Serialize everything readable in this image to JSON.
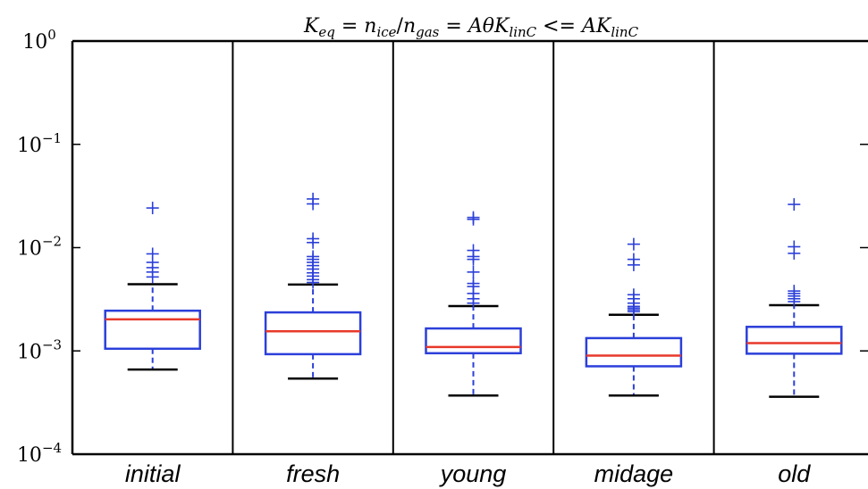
{
  "chart_data": {
    "type": "box",
    "title": "K_eq = n_ice/n_gas = AθK_linC <= AK_linC",
    "title_parts": {
      "k": "K",
      "k_sub": "eq",
      "eq1": " = ",
      "n1": "n",
      "n1_sub": "ice",
      "slash": "/",
      "n2": "n",
      "n2_sub": "gas",
      "eq2": " = ",
      "mid": "AθK",
      "mid_sub": "linC",
      "le": " <= ",
      "last": "AK",
      "last_sub": "linC"
    },
    "y_scale": "log",
    "ylim": [
      0.0001,
      1
    ],
    "y_ticks": [
      {
        "value": 1,
        "base": "10",
        "exp": "0"
      },
      {
        "value": 0.1,
        "base": "10",
        "exp": "−1"
      },
      {
        "value": 0.01,
        "base": "10",
        "exp": "−2"
      },
      {
        "value": 0.001,
        "base": "10",
        "exp": "−3"
      },
      {
        "value": 0.0001,
        "base": "10",
        "exp": "−4"
      }
    ],
    "categories": [
      "initial",
      "fresh",
      "young",
      "midage",
      "old"
    ],
    "colors": {
      "box": "#2b3fd9",
      "median": "#e8392b",
      "whisker_cap": "#000000",
      "outlier": "#2b3fd9",
      "separator": "#000000"
    },
    "boxes": [
      {
        "category": "initial",
        "whisker_low": 0.00066,
        "q1": 0.00105,
        "median": 0.00202,
        "q3": 0.00245,
        "whisker_high": 0.00442,
        "outliers": [
          0.0052,
          0.0058,
          0.0064,
          0.0072,
          0.0087,
          0.0242
        ]
      },
      {
        "category": "fresh",
        "whisker_low": 0.00054,
        "q1": 0.00093,
        "median": 0.00155,
        "q3": 0.00236,
        "whisker_high": 0.00439,
        "outliers": [
          0.0046,
          0.0049,
          0.0053,
          0.0057,
          0.0062,
          0.0067,
          0.0072,
          0.0077,
          0.0082,
          0.0112,
          0.0122,
          0.0265,
          0.0296
        ]
      },
      {
        "category": "young",
        "whisker_low": 0.00037,
        "q1": 0.00095,
        "median": 0.00109,
        "q3": 0.00165,
        "whisker_high": 0.00272,
        "outliers": [
          0.0029,
          0.0032,
          0.0036,
          0.0042,
          0.0045,
          0.0058,
          0.0077,
          0.0082,
          0.0094,
          0.0188,
          0.0196
        ]
      },
      {
        "category": "midage",
        "whisker_low": 0.00037,
        "q1": 0.00071,
        "median": 0.0009,
        "q3": 0.00133,
        "whisker_high": 0.00224,
        "outliers": [
          0.0024,
          0.0025,
          0.0026,
          0.0027,
          0.0029,
          0.0032,
          0.0035,
          0.0068,
          0.0077,
          0.0108
        ]
      },
      {
        "category": "old",
        "whisker_low": 0.00036,
        "q1": 0.00094,
        "median": 0.00119,
        "q3": 0.00171,
        "whisker_high": 0.00277,
        "outliers": [
          0.003,
          0.0032,
          0.0034,
          0.0036,
          0.0038,
          0.0088,
          0.0102,
          0.0262
        ]
      }
    ]
  }
}
